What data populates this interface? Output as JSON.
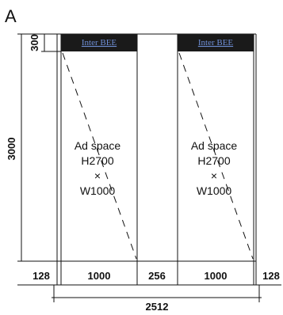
{
  "figure_label": "A",
  "panels": [
    {
      "brand": "Inter BEE",
      "ad_title": "Ad space",
      "height_label": "H2700",
      "times": "×",
      "width_label": "W1000"
    },
    {
      "brand": "Inter BEE",
      "ad_title": "Ad space",
      "height_label": "H2700",
      "times": "×",
      "width_label": "W1000"
    }
  ],
  "dimensions": {
    "header_height": "300",
    "total_height": "3000",
    "margin_left": "128",
    "panel1_width": "1000",
    "gap": "256",
    "panel2_width": "1000",
    "margin_right": "128",
    "total_width": "2512"
  },
  "colors": {
    "header_band": "#1a1a1a",
    "brand_text": "#6f8fd6",
    "line": "#111111"
  }
}
